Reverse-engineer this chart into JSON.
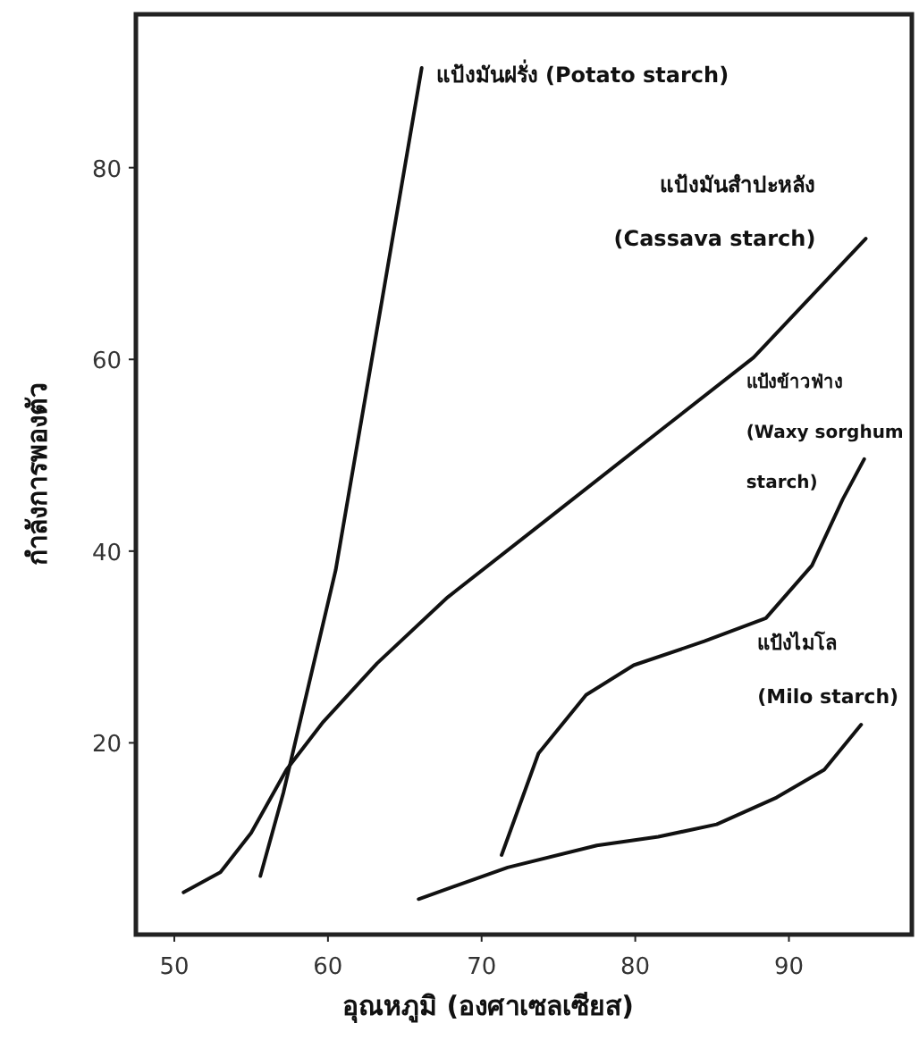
{
  "chart_data": {
    "type": "line",
    "xlabel": "อุณหภูมิ (องศาเซลเซียส)",
    "ylabel": "กำลังการพองตัว",
    "xlim": [
      47.5,
      98
    ],
    "ylim": [
      0,
      96
    ],
    "xticks": [
      50,
      60,
      70,
      80,
      90
    ],
    "yticks": [
      20,
      40,
      60,
      80
    ],
    "series": [
      {
        "name": "แป้งมันฝรั่ง (Potato starch)",
        "color": "#111111",
        "x": [
          55.6,
          57.1,
          60.5,
          63.5,
          66.1
        ],
        "values": [
          6.1,
          14.8,
          38,
          66,
          90.4
        ]
      },
      {
        "name": "แป้งมันสำปะหลัง\n(Cassava starch)",
        "color": "#111111",
        "x": [
          50.6,
          53,
          55,
          57.3,
          59.7,
          63.2,
          67.8,
          73.7,
          81.8,
          87.7,
          95.0
        ],
        "values": [
          4.4,
          6.5,
          10.6,
          17.2,
          22.2,
          28.3,
          35.2,
          42.6,
          52.8,
          60.2,
          72.6
        ]
      },
      {
        "name": "แป้งข้าวฟ่าง\n(Waxy sorghum\nstarch)",
        "color": "#111111",
        "x": [
          71.3,
          73.7,
          76.8,
          79.9,
          84.5,
          88.5,
          91.5,
          93.5,
          94.9
        ],
        "values": [
          8.3,
          18.9,
          25.0,
          28.1,
          30.6,
          33.0,
          38.5,
          45.4,
          49.6
        ]
      },
      {
        "name": "แป้งไมโล\n(Milo starch)",
        "color": "#111111",
        "x": [
          65.9,
          71.7,
          77.5,
          81.5,
          85.3,
          89.2,
          92.3,
          94.7
        ],
        "values": [
          3.7,
          7.0,
          9.3,
          10.2,
          11.5,
          14.3,
          17.2,
          21.9
        ]
      }
    ]
  }
}
